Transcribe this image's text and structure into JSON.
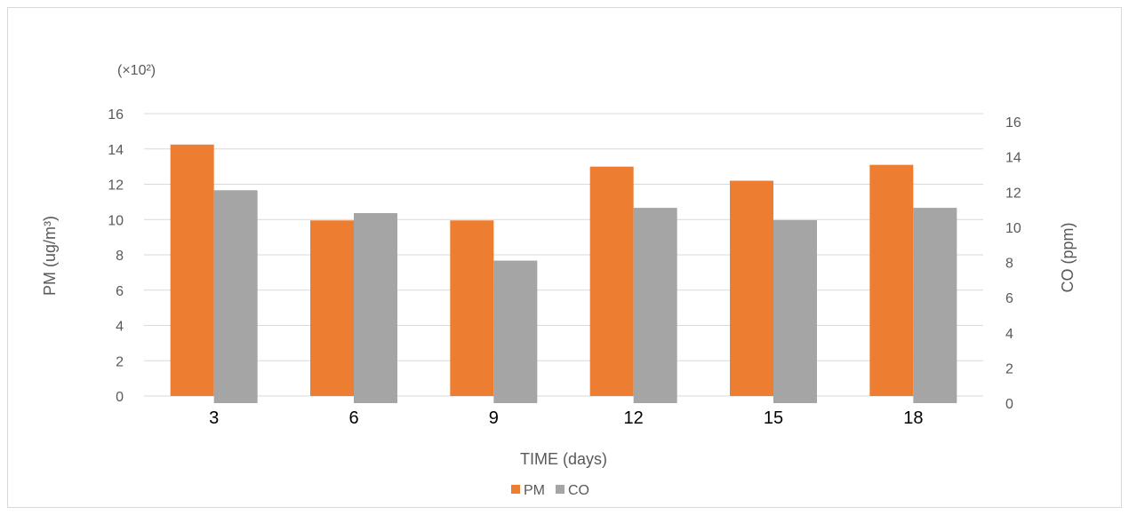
{
  "chart_data": {
    "type": "bar",
    "multiplier_label": "(×10²)",
    "categories": [
      "3",
      "6",
      "9",
      "12",
      "15",
      "18"
    ],
    "series": [
      {
        "name": "PM",
        "axis": "left",
        "color": "#ED7D31",
        "values": [
          14.25,
          9.95,
          9.95,
          13.0,
          12.2,
          13.1
        ]
      },
      {
        "name": "CO",
        "axis": "right",
        "color": "#A5A5A5",
        "values": [
          12.1,
          10.8,
          8.1,
          11.1,
          10.4,
          11.1
        ]
      }
    ],
    "xlabel": "TIME (days)",
    "ylabel": "PM (ug/m³)",
    "ylabel_right": "CO (ppm)",
    "ylim": [
      0,
      16
    ],
    "ylim_right": [
      0,
      16
    ],
    "yticks": [
      0,
      2,
      4,
      6,
      8,
      10,
      12,
      14,
      16
    ],
    "yticks_right": [
      0,
      2,
      4,
      6,
      8,
      10,
      12,
      14,
      16
    ],
    "grid": true,
    "legend_position": "bottom",
    "gridline_color": "#d9d9d9"
  }
}
